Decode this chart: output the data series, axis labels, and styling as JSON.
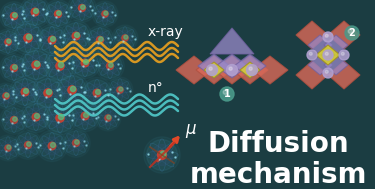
{
  "bg_color": "#1b3d42",
  "title_text": "Diffusion\nmechanism",
  "title_color": "#ffffff",
  "title_fontsize": 20,
  "xray_label": "x-ray",
  "xray_label_color": "#ffffff",
  "xray_label_fontsize": 10,
  "neutron_label": "n°",
  "neutron_label_color": "#ffffff",
  "neutron_label_fontsize": 10,
  "mu_label": "μ",
  "mu_label_color": "#ffffff",
  "mu_label_fontsize": 12,
  "xray_color": "#e8a020",
  "neutron_color": "#50c8c8",
  "label1": "1",
  "label2": "2",
  "label_bg_color": "#4a9a8a",
  "label_text_color": "#ffffff",
  "oct_salmon": "#d86858",
  "oct_purple": "#9888c8",
  "oct_yellow": "#d8d030",
  "sphere_color": "#b0a0d0",
  "arrow_color": "#101010",
  "mu_arrow_color": "#e04828",
  "atom_orbital_color": "#3878a8",
  "atom_core_color1": "#c84030",
  "atom_core_color2": "#40a080",
  "atom_glow_color": "#203858"
}
